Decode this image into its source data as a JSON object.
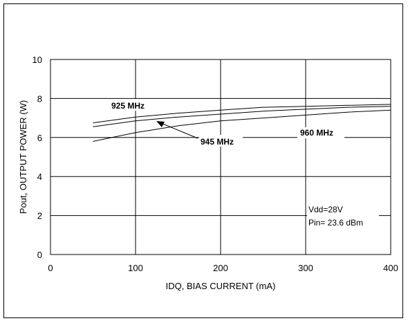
{
  "chart_data": {
    "type": "line",
    "xlabel": "IDQ, BIAS CURRENT (mA)",
    "ylabel": "Pout, OUTPUT POWER (W)",
    "xlim": [
      0,
      400
    ],
    "ylim": [
      0,
      10
    ],
    "xticks": [
      0,
      100,
      200,
      300,
      400
    ],
    "yticks": [
      0,
      2,
      4,
      6,
      8,
      10
    ],
    "grid": true,
    "series": [
      {
        "name": "925 MHz",
        "x": [
          50,
          100,
          150,
          200,
          250,
          300,
          350,
          400
        ],
        "y": [
          6.75,
          7.05,
          7.25,
          7.4,
          7.55,
          7.6,
          7.65,
          7.7
        ]
      },
      {
        "name": "945 MHz",
        "x": [
          50,
          100,
          150,
          200,
          250,
          300,
          350,
          400
        ],
        "y": [
          6.55,
          6.85,
          7.05,
          7.2,
          7.35,
          7.45,
          7.55,
          7.6
        ]
      },
      {
        "name": "960 MHz",
        "x": [
          50,
          100,
          150,
          200,
          250,
          300,
          350,
          400
        ],
        "y": [
          5.8,
          6.25,
          6.6,
          6.85,
          7.0,
          7.15,
          7.3,
          7.4
        ]
      }
    ],
    "annotations": [
      "Vdd=28V",
      "Pin= 23.6 dBm"
    ]
  }
}
